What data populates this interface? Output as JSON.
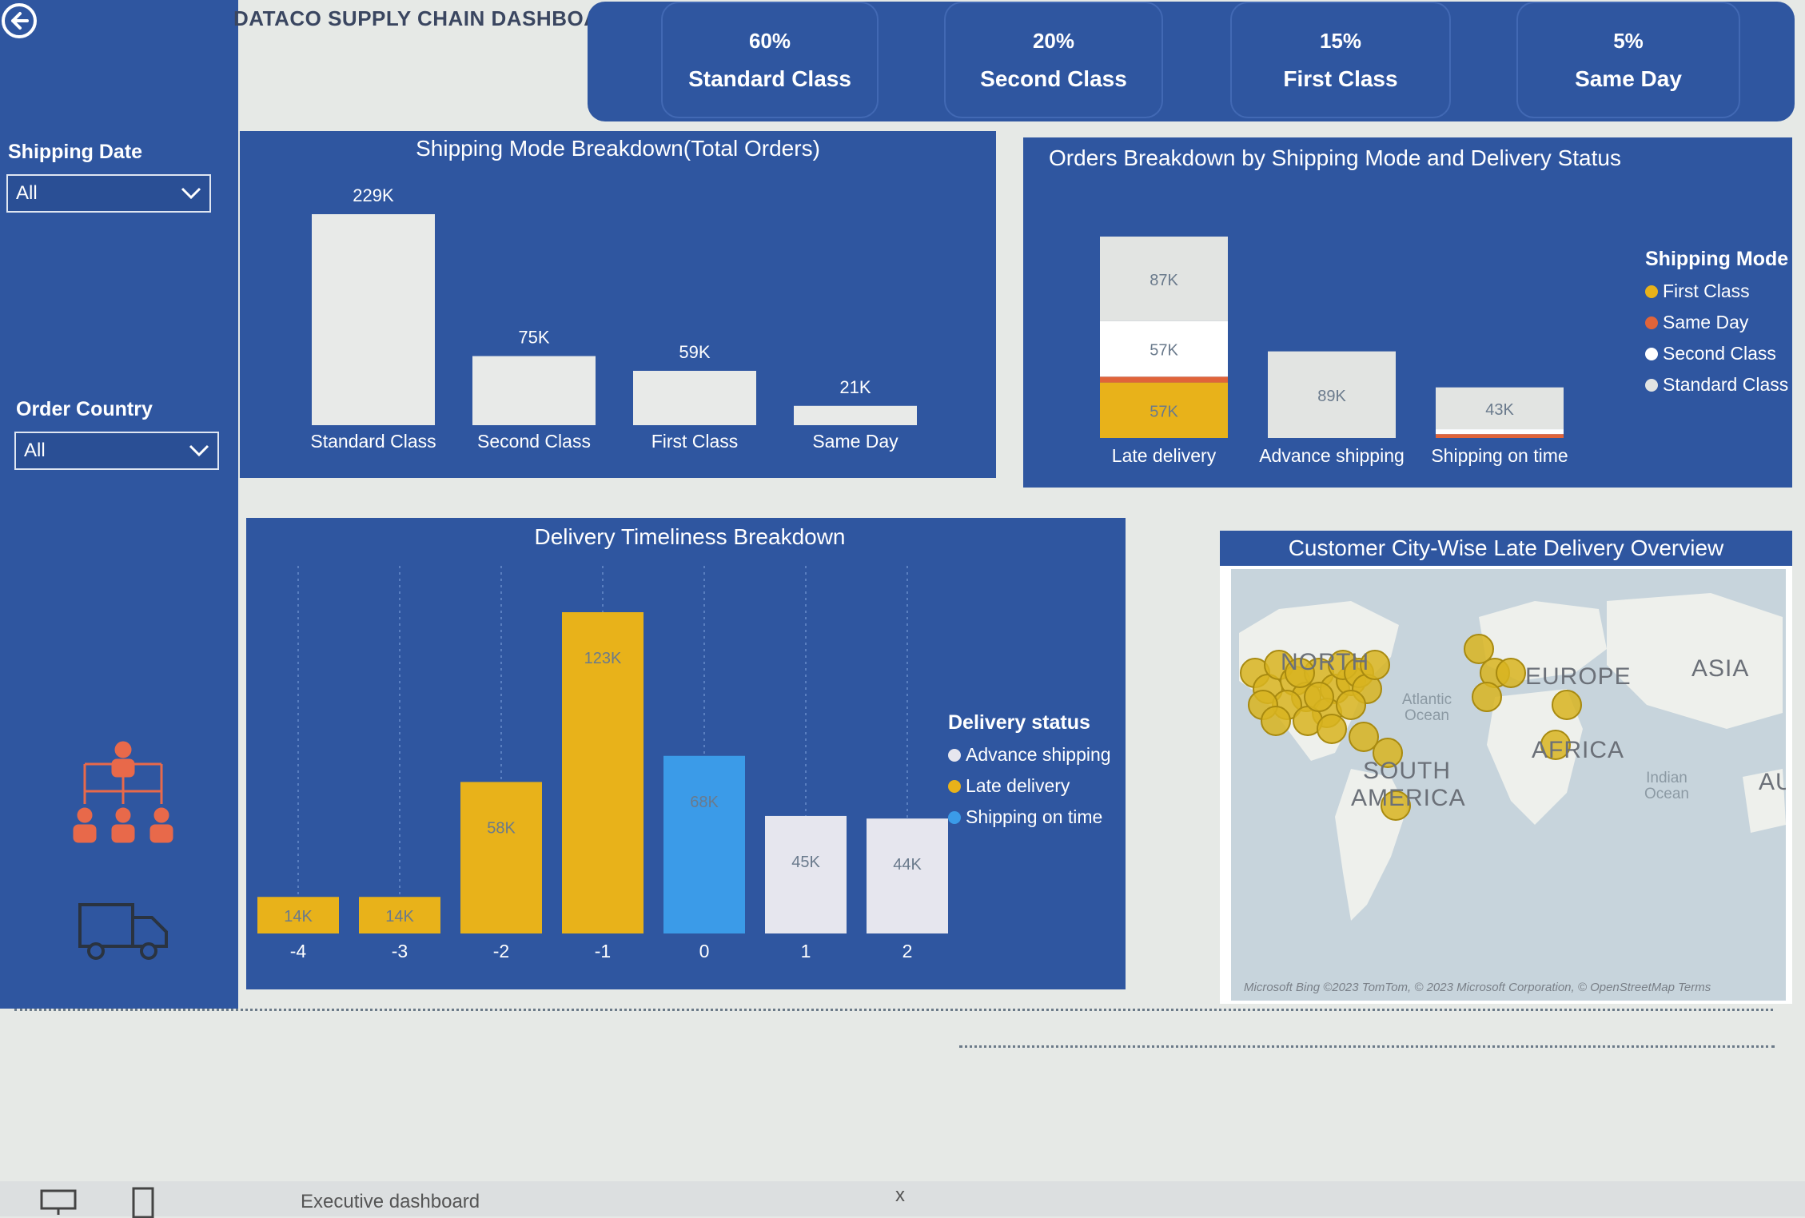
{
  "dashboard": {
    "title": "DATACO SUPPLY CHAIN DASHBOARD"
  },
  "sidebar": {
    "back_icon": "arrow-left-circle-icon",
    "filters": [
      {
        "label": "Shipping Date",
        "value": "All"
      },
      {
        "label": "Order Country",
        "value": "All"
      }
    ],
    "icons": [
      "org-hierarchy-icon",
      "delivery-truck-icon"
    ]
  },
  "kpis": [
    {
      "pct": "60%",
      "label": "Standard Class"
    },
    {
      "pct": "20%",
      "label": "Second Class"
    },
    {
      "pct": "15%",
      "label": "First Class"
    },
    {
      "pct": "5%",
      "label": "Same Day"
    }
  ],
  "shipping_mode_chart": {
    "chart_data": {
      "type": "bar",
      "title": "Shipping Mode Breakdown(Total Orders)",
      "categories": [
        "Standard Class",
        "Second Class",
        "First Class",
        "Same Day"
      ],
      "values": [
        229000,
        75000,
        59000,
        21000
      ],
      "labels": [
        "229K",
        "75K",
        "59K",
        "21K"
      ],
      "ylim": [
        0,
        229000
      ]
    }
  },
  "delivery_status_chart": {
    "chart_data": {
      "type": "bar",
      "stacked": true,
      "title": "Orders Breakdown by Shipping Mode and Delivery Status",
      "categories": [
        "Late delivery",
        "Advance shipping",
        "Shipping on time"
      ],
      "series": [
        {
          "name": "First Class",
          "color": "#e8b21a",
          "values": [
            57000,
            0,
            0
          ],
          "labels": [
            "57K",
            "",
            ""
          ]
        },
        {
          "name": "Same Day",
          "color": "#e0643a",
          "values": [
            6000,
            0,
            4000
          ],
          "labels": [
            "",
            "",
            ""
          ]
        },
        {
          "name": "Second Class",
          "color": "#ffffff",
          "values": [
            57000,
            0,
            5000
          ],
          "labels": [
            "57K",
            "",
            ""
          ]
        },
        {
          "name": "Standard Class",
          "color": "#e2e4e2",
          "values": [
            87000,
            89000,
            43000
          ],
          "labels": [
            "87K",
            "89K",
            "43K"
          ]
        }
      ],
      "legend_title": "Shipping Mode",
      "legend_position": "right"
    }
  },
  "timeliness_chart": {
    "chart_data": {
      "type": "bar",
      "title": "Delivery Timeliness Breakdown",
      "categories": [
        "-4",
        "-3",
        "-2",
        "-1",
        "0",
        "1",
        "2"
      ],
      "values": [
        14000,
        14000,
        58000,
        123000,
        68000,
        45000,
        44000
      ],
      "labels": [
        "14K",
        "14K",
        "58K",
        "123K",
        "68K",
        "45K",
        "44K"
      ],
      "status": [
        "late",
        "late",
        "late",
        "late",
        "ontime",
        "advance",
        "advance"
      ],
      "legend_title": "Delivery status",
      "legend": [
        {
          "name": "Advance shipping",
          "color": "#e6e6ee"
        },
        {
          "name": "Late delivery",
          "color": "#e8b21a"
        },
        {
          "name": "Shipping on time",
          "color": "#3b9be8"
        }
      ],
      "legend_position": "right",
      "ylim": [
        0,
        123000
      ]
    }
  },
  "map": {
    "title": "Customer City-Wise Late Delivery Overview",
    "labels": {
      "north": "NORTH",
      "europe": "EUROPE",
      "asia": "ASIA",
      "africa": "AFRICA",
      "south_america": "SOUTH AMERICA",
      "atlantic": "Atlantic Ocean",
      "indian": "Indian Ocean",
      "au": "AU"
    },
    "attribution": "Microsoft Bing ©2023 TomTom, © 2023 Microsoft Corporation, © OpenStreetMap  Terms"
  },
  "footer": {
    "tabs": [
      "Executive dashboard"
    ],
    "close": "x"
  }
}
